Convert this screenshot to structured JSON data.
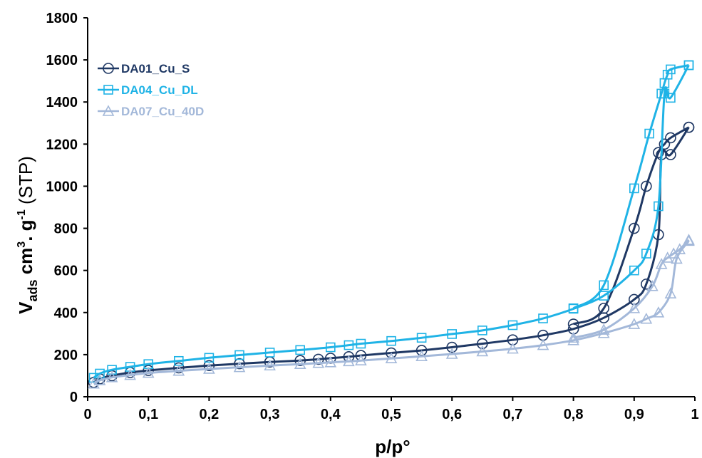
{
  "chart_data": {
    "type": "line",
    "title": "",
    "xlabel": "p/p°",
    "ylabel": {
      "main": "V",
      "sub": "ads",
      "unit_a": " cm",
      "unit_a_sup": "3",
      "unit_b": ". g",
      "unit_b_sup": "-1",
      "tail": " (STP)"
    },
    "xlim": [
      0,
      1
    ],
    "ylim": [
      0,
      1800
    ],
    "x_ticks": [
      "0",
      "0,1",
      "0,2",
      "0,3",
      "0,4",
      "0,5",
      "0,6",
      "0,7",
      "0,8",
      "0,9",
      "1"
    ],
    "y_ticks": [
      "0",
      "200",
      "400",
      "600",
      "800",
      "1000",
      "1200",
      "1400",
      "1600",
      "1800"
    ],
    "grid": false,
    "legend_position": "top-left",
    "series": [
      {
        "name": "DA01_Cu_S",
        "color": "#1f3864",
        "marker": "circle",
        "adsorption": [
          [
            0.01,
            68
          ],
          [
            0.02,
            85
          ],
          [
            0.04,
            100
          ],
          [
            0.07,
            115
          ],
          [
            0.1,
            125
          ],
          [
            0.15,
            137
          ],
          [
            0.2,
            148
          ],
          [
            0.25,
            157
          ],
          [
            0.3,
            165
          ],
          [
            0.35,
            172
          ],
          [
            0.38,
            178
          ],
          [
            0.4,
            183
          ],
          [
            0.43,
            190
          ],
          [
            0.45,
            196
          ],
          [
            0.5,
            208
          ],
          [
            0.55,
            220
          ],
          [
            0.6,
            235
          ],
          [
            0.65,
            252
          ],
          [
            0.7,
            270
          ],
          [
            0.75,
            292
          ],
          [
            0.8,
            322
          ],
          [
            0.85,
            375
          ],
          [
            0.9,
            462
          ],
          [
            0.92,
            535
          ],
          [
            0.94,
            770
          ],
          [
            0.945,
            1150
          ],
          [
            0.96,
            1150
          ],
          [
            0.99,
            1280
          ]
        ],
        "desorption": [
          [
            0.99,
            1280
          ],
          [
            0.96,
            1230
          ],
          [
            0.95,
            1200
          ],
          [
            0.94,
            1160
          ],
          [
            0.92,
            1000
          ],
          [
            0.9,
            800
          ],
          [
            0.85,
            420
          ],
          [
            0.8,
            345
          ]
        ]
      },
      {
        "name": "DA04_Cu_DL",
        "color": "#1fb3e6",
        "marker": "square",
        "adsorption": [
          [
            0.01,
            90
          ],
          [
            0.02,
            110
          ],
          [
            0.04,
            128
          ],
          [
            0.07,
            142
          ],
          [
            0.1,
            155
          ],
          [
            0.15,
            170
          ],
          [
            0.2,
            185
          ],
          [
            0.25,
            198
          ],
          [
            0.3,
            210
          ],
          [
            0.35,
            222
          ],
          [
            0.4,
            235
          ],
          [
            0.43,
            245
          ],
          [
            0.45,
            252
          ],
          [
            0.5,
            265
          ],
          [
            0.55,
            280
          ],
          [
            0.6,
            298
          ],
          [
            0.65,
            315
          ],
          [
            0.7,
            340
          ],
          [
            0.75,
            372
          ],
          [
            0.8,
            418
          ],
          [
            0.85,
            480
          ],
          [
            0.9,
            600
          ],
          [
            0.92,
            680
          ],
          [
            0.94,
            905
          ],
          [
            0.95,
            1440
          ],
          [
            0.96,
            1420
          ],
          [
            0.99,
            1575
          ]
        ],
        "desorption": [
          [
            0.99,
            1575
          ],
          [
            0.96,
            1555
          ],
          [
            0.955,
            1530
          ],
          [
            0.95,
            1490
          ],
          [
            0.945,
            1440
          ],
          [
            0.925,
            1250
          ],
          [
            0.9,
            990
          ],
          [
            0.85,
            530
          ],
          [
            0.8,
            420
          ]
        ]
      },
      {
        "name": "DA07_Cu_40D",
        "color": "#a3b8d9",
        "marker": "triangle",
        "adsorption": [
          [
            0.01,
            62
          ],
          [
            0.02,
            78
          ],
          [
            0.04,
            92
          ],
          [
            0.07,
            103
          ],
          [
            0.1,
            113
          ],
          [
            0.15,
            123
          ],
          [
            0.2,
            132
          ],
          [
            0.25,
            140
          ],
          [
            0.3,
            148
          ],
          [
            0.35,
            155
          ],
          [
            0.38,
            160
          ],
          [
            0.4,
            163
          ],
          [
            0.43,
            168
          ],
          [
            0.45,
            172
          ],
          [
            0.5,
            182
          ],
          [
            0.55,
            192
          ],
          [
            0.6,
            203
          ],
          [
            0.65,
            215
          ],
          [
            0.7,
            228
          ],
          [
            0.75,
            245
          ],
          [
            0.8,
            268
          ],
          [
            0.85,
            302
          ],
          [
            0.9,
            345
          ],
          [
            0.92,
            370
          ],
          [
            0.94,
            400
          ],
          [
            0.96,
            490
          ],
          [
            0.97,
            655
          ],
          [
            0.99,
            740
          ]
        ],
        "desorption": [
          [
            0.99,
            745
          ],
          [
            0.975,
            700
          ],
          [
            0.965,
            680
          ],
          [
            0.955,
            660
          ],
          [
            0.945,
            630
          ],
          [
            0.93,
            525
          ],
          [
            0.9,
            420
          ],
          [
            0.85,
            318
          ],
          [
            0.8,
            280
          ]
        ]
      }
    ]
  }
}
